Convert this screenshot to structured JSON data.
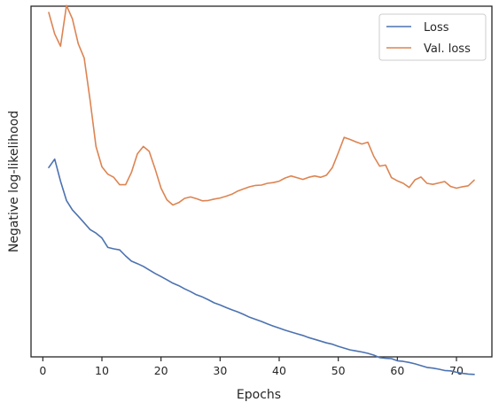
{
  "chart_data": {
    "type": "line",
    "xlabel": "Epochs",
    "ylabel": "Negative log-likelihood",
    "xlim": [
      -2,
      76
    ],
    "ylim": [
      0,
      100
    ],
    "y_ticks_shown": false,
    "x_ticks": [
      0,
      10,
      20,
      30,
      40,
      50,
      60,
      70
    ],
    "x_tick_labels": [
      "0",
      "10",
      "20",
      "30",
      "40",
      "50",
      "60",
      "70"
    ],
    "grid": false,
    "legend_position": "top-right",
    "x": [
      1,
      2,
      3,
      4,
      5,
      6,
      7,
      8,
      9,
      10,
      11,
      12,
      13,
      14,
      15,
      16,
      17,
      18,
      19,
      20,
      21,
      22,
      23,
      24,
      25,
      26,
      27,
      28,
      29,
      30,
      31,
      32,
      33,
      34,
      35,
      36,
      37,
      38,
      39,
      40,
      41,
      42,
      43,
      44,
      45,
      46,
      47,
      48,
      49,
      50,
      51,
      52,
      53,
      54,
      55,
      56,
      57,
      58,
      59,
      60,
      61,
      62,
      63,
      64,
      65,
      66,
      67,
      68,
      69,
      70,
      71,
      72,
      73
    ],
    "series": [
      {
        "name": "Loss",
        "color": "#4c72b0",
        "values": [
          54,
          56.4,
          50.1,
          44.6,
          41.9,
          40.1,
          38.2,
          36.3,
          35.3,
          33.9,
          31.2,
          30.8,
          30.5,
          28.8,
          27.3,
          26.6,
          25.8,
          24.8,
          23.8,
          22.9,
          22.0,
          21.0,
          20.3,
          19.4,
          18.6,
          17.7,
          17.1,
          16.3,
          15.4,
          14.8,
          14.1,
          13.4,
          12.8,
          12.1,
          11.3,
          10.7,
          10.1,
          9.4,
          8.8,
          8.2,
          7.6,
          7.1,
          6.6,
          6.1,
          5.5,
          5.0,
          4.5,
          4.0,
          3.6,
          3.0,
          2.5,
          2.0,
          1.7,
          1.4,
          1.0,
          0.5,
          -0.2,
          -0.4,
          -0.5,
          -1.1,
          -1.3,
          -1.6,
          -2.0,
          -2.5,
          -3.0,
          -3.2,
          -3.5,
          -3.9,
          -4.0,
          -4.4,
          -4.7,
          -4.9,
          -5.0
        ]
      },
      {
        "name": "Val. loss",
        "color": "#dd8452",
        "values": [
          98.2,
          92.1,
          88.6,
          100.2,
          96.4,
          89.3,
          85.2,
          73.1,
          60.0,
          54.2,
          52.1,
          51.2,
          49.1,
          49.1,
          52.6,
          57.9,
          60.0,
          58.6,
          53.6,
          48.1,
          44.8,
          43.3,
          44.0,
          45.2,
          45.6,
          45.1,
          44.5,
          44.6,
          45.0,
          45.3,
          45.8,
          46.4,
          47.3,
          47.9,
          48.5,
          48.9,
          49.0,
          49.5,
          49.7,
          50.1,
          51.0,
          51.6,
          51.1,
          50.6,
          51.2,
          51.6,
          51.2,
          51.8,
          54.0,
          58.2,
          62.6,
          62.0,
          61.3,
          60.7,
          61.2,
          57.2,
          54.4,
          54.7,
          51.1,
          50.2,
          49.5,
          48.3,
          50.5,
          51.3,
          49.5,
          49.2,
          49.6,
          50.0,
          48.6,
          48.1,
          48.5,
          48.8,
          50.4
        ]
      }
    ]
  }
}
